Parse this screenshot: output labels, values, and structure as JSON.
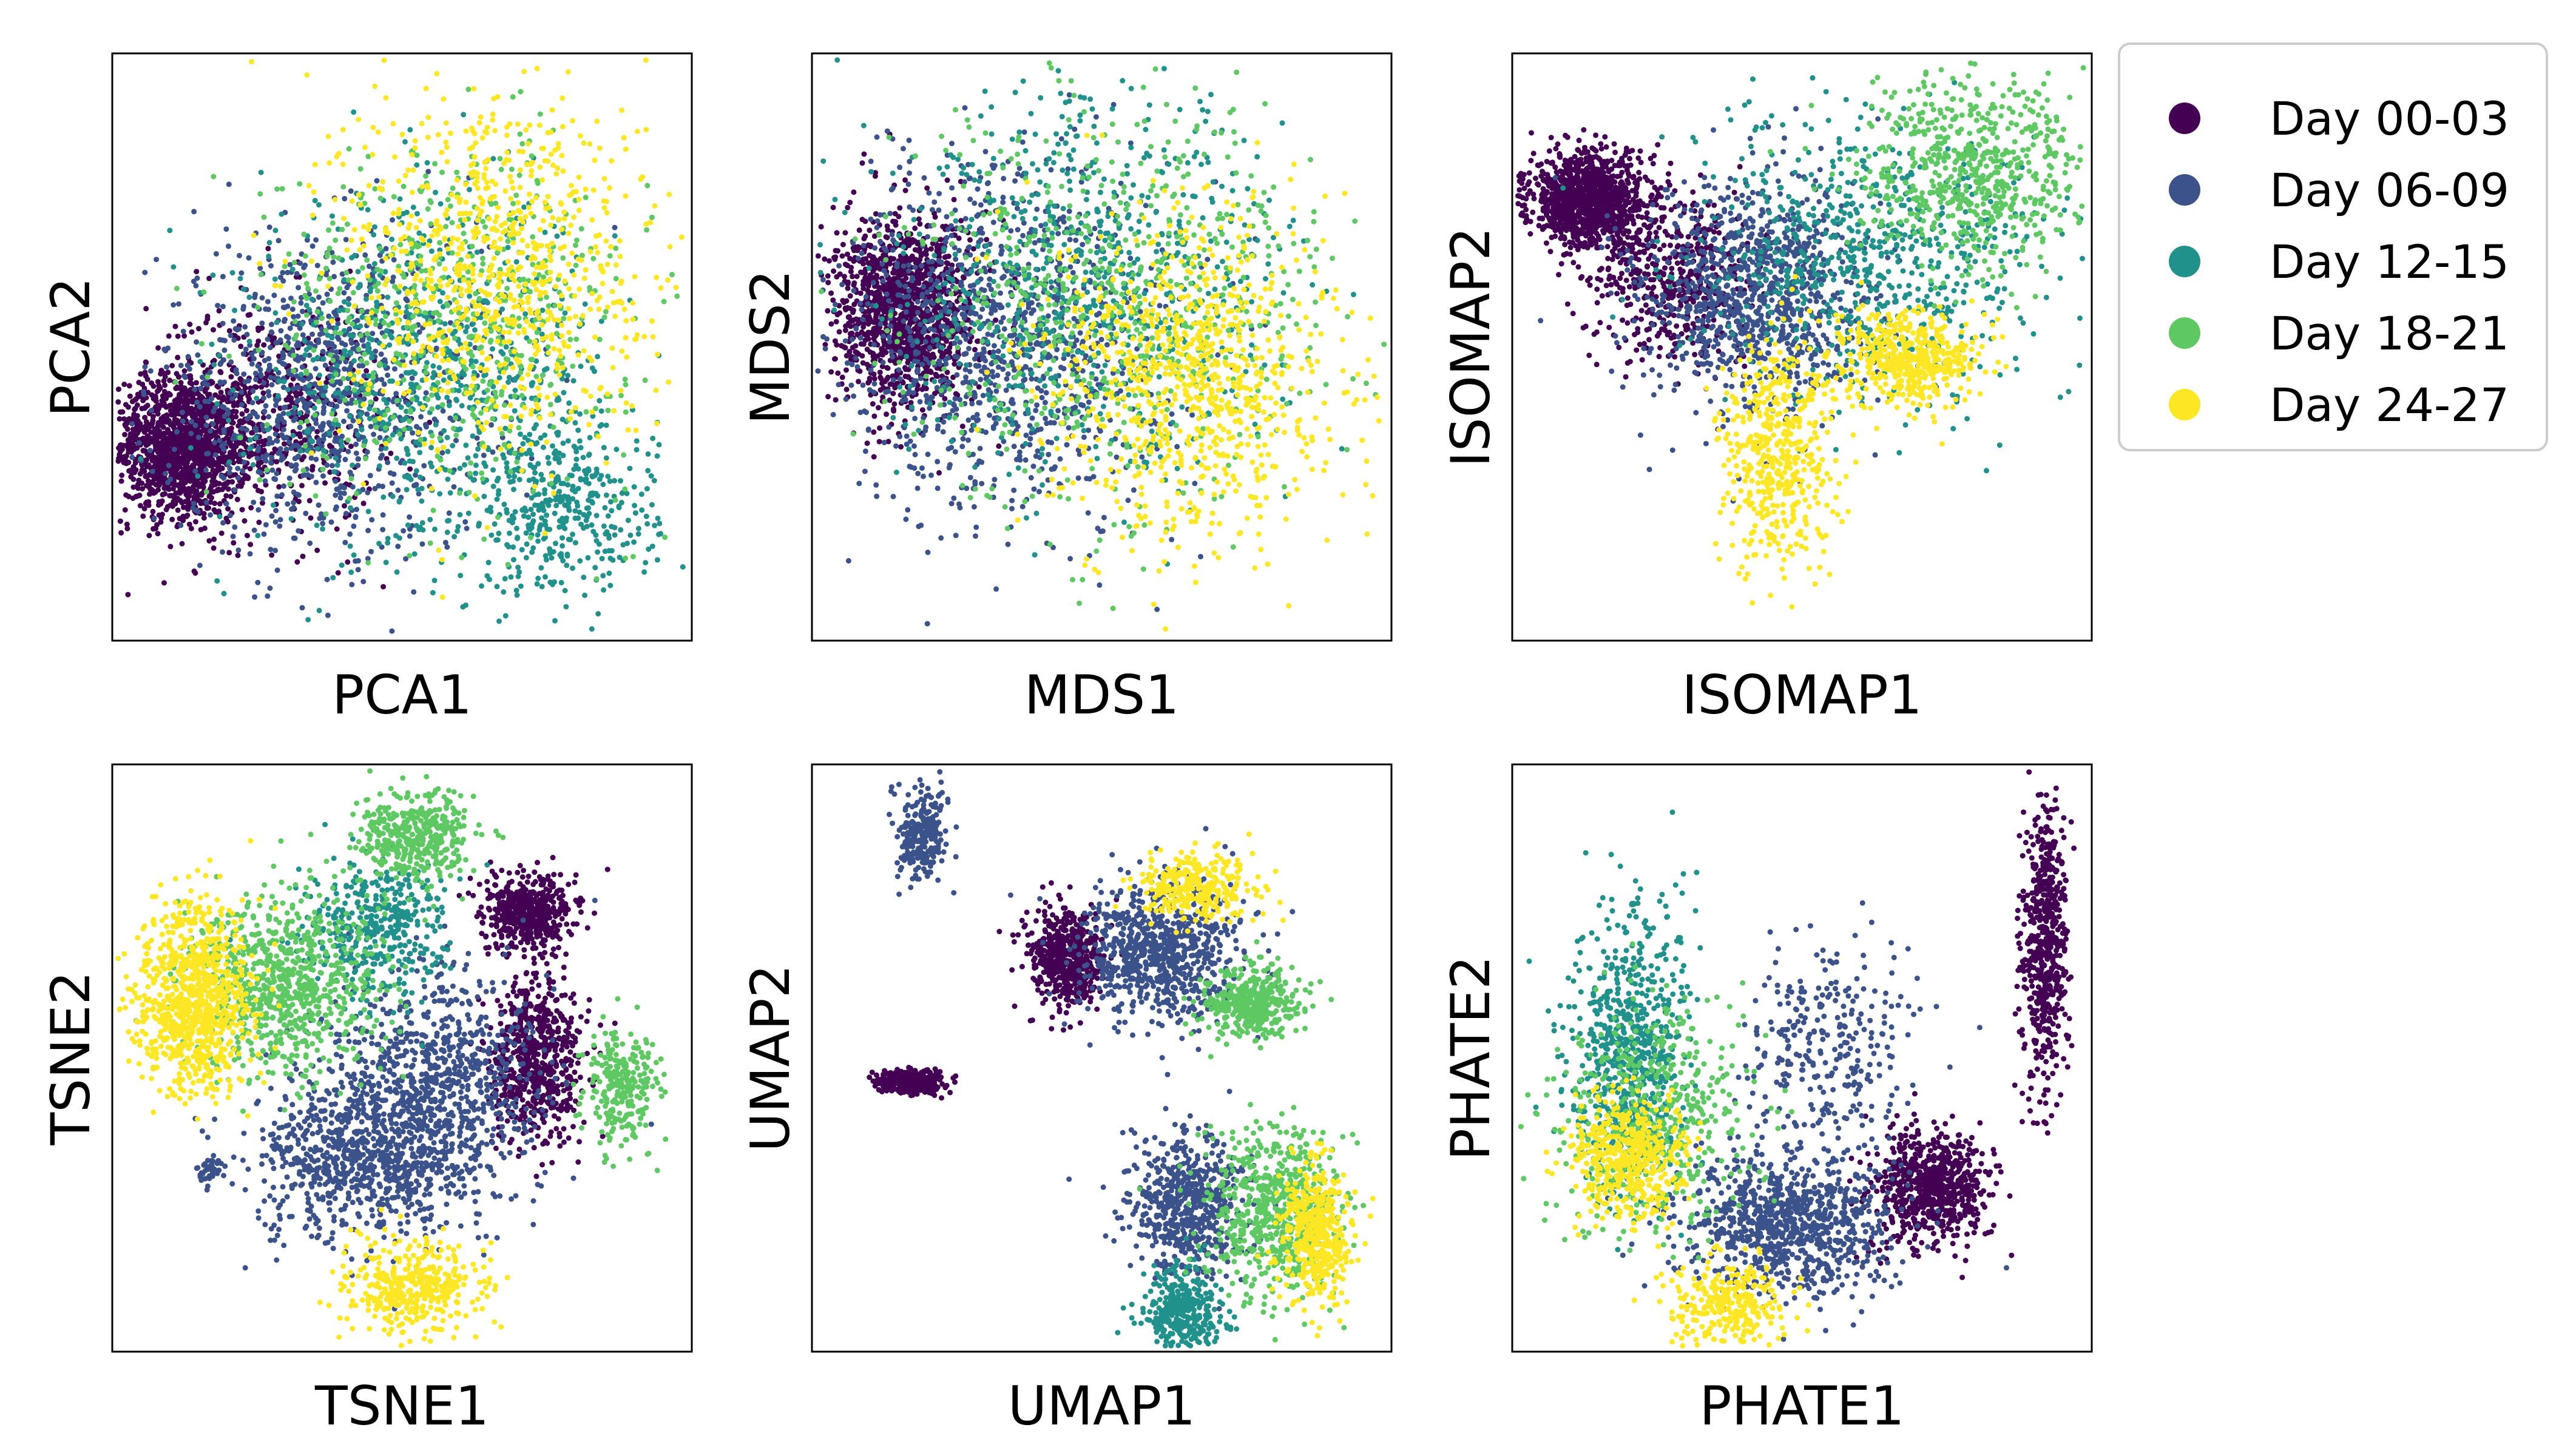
{
  "legend": {
    "placement": "right",
    "entries": [
      {
        "label": "Day 00-03",
        "color": "#440154"
      },
      {
        "label": "Day 06-09",
        "color": "#3b528b"
      },
      {
        "label": "Day 12-15",
        "color": "#21918c"
      },
      {
        "label": "Day 18-21",
        "color": "#5ec962"
      },
      {
        "label": "Day 24-27",
        "color": "#fde725"
      }
    ]
  },
  "chart_data": [
    {
      "type": "scatter",
      "xlabel": "PCA1",
      "ylabel": "PCA2",
      "ticks": false,
      "grid": false,
      "clusters": [
        {
          "series": "Day 00-03",
          "cx": 0.12,
          "cy": 0.33,
          "sx": 0.06,
          "sy": 0.06,
          "n": 1400
        },
        {
          "series": "Day 00-03",
          "cx": 0.26,
          "cy": 0.38,
          "sx": 0.1,
          "sy": 0.1,
          "n": 500
        },
        {
          "series": "Day 06-09",
          "cx": 0.36,
          "cy": 0.42,
          "sx": 0.14,
          "sy": 0.13,
          "n": 1000
        },
        {
          "series": "Day 12-15",
          "cx": 0.55,
          "cy": 0.45,
          "sx": 0.15,
          "sy": 0.15,
          "n": 750
        },
        {
          "series": "Day 12-15",
          "cx": 0.78,
          "cy": 0.22,
          "sx": 0.08,
          "sy": 0.07,
          "n": 380
        },
        {
          "series": "Day 18-21",
          "cx": 0.58,
          "cy": 0.55,
          "sx": 0.16,
          "sy": 0.15,
          "n": 600
        },
        {
          "series": "Day 24-27",
          "cx": 0.66,
          "cy": 0.64,
          "sx": 0.13,
          "sy": 0.16,
          "n": 850
        }
      ]
    },
    {
      "type": "scatter",
      "xlabel": "MDS1",
      "ylabel": "MDS2",
      "ticks": false,
      "grid": false,
      "clusters": [
        {
          "series": "Day 00-03",
          "cx": 0.16,
          "cy": 0.56,
          "sx": 0.06,
          "sy": 0.08,
          "n": 1300
        },
        {
          "series": "Day 06-09",
          "cx": 0.33,
          "cy": 0.52,
          "sx": 0.14,
          "sy": 0.15,
          "n": 1100
        },
        {
          "series": "Day 12-15",
          "cx": 0.48,
          "cy": 0.6,
          "sx": 0.17,
          "sy": 0.16,
          "n": 700
        },
        {
          "series": "Day 18-21",
          "cx": 0.52,
          "cy": 0.58,
          "sx": 0.18,
          "sy": 0.17,
          "n": 700
        },
        {
          "series": "Day 24-27",
          "cx": 0.66,
          "cy": 0.45,
          "sx": 0.12,
          "sy": 0.14,
          "n": 900
        }
      ]
    },
    {
      "type": "scatter",
      "xlabel": "ISOMAP1",
      "ylabel": "ISOMAP2",
      "ticks": false,
      "grid": false,
      "clusters": [
        {
          "series": "Day 00-03",
          "cx": 0.13,
          "cy": 0.75,
          "sx": 0.05,
          "sy": 0.04,
          "n": 1100
        },
        {
          "series": "Day 00-03",
          "cx": 0.28,
          "cy": 0.62,
          "sx": 0.07,
          "sy": 0.07,
          "n": 500
        },
        {
          "series": "Day 06-09",
          "cx": 0.42,
          "cy": 0.58,
          "sx": 0.1,
          "sy": 0.1,
          "n": 1000
        },
        {
          "series": "Day 12-15",
          "cx": 0.62,
          "cy": 0.65,
          "sx": 0.15,
          "sy": 0.12,
          "n": 700
        },
        {
          "series": "Day 18-21",
          "cx": 0.8,
          "cy": 0.8,
          "sx": 0.1,
          "sy": 0.08,
          "n": 650
        },
        {
          "series": "Day 24-27",
          "cx": 0.68,
          "cy": 0.48,
          "sx": 0.06,
          "sy": 0.04,
          "n": 500
        },
        {
          "series": "Day 24-27",
          "cx": 0.46,
          "cy": 0.32,
          "sx": 0.05,
          "sy": 0.1,
          "n": 500
        }
      ]
    },
    {
      "type": "scatter",
      "xlabel": "TSNE1",
      "ylabel": "TSNE2",
      "ticks": false,
      "grid": false,
      "clusters": [
        {
          "series": "Day 24-27",
          "cx": 0.14,
          "cy": 0.6,
          "sx": 0.05,
          "sy": 0.08,
          "n": 900
        },
        {
          "series": "Day 18-21",
          "cx": 0.3,
          "cy": 0.62,
          "sx": 0.08,
          "sy": 0.08,
          "n": 800
        },
        {
          "series": "Day 12-15",
          "cx": 0.45,
          "cy": 0.72,
          "sx": 0.06,
          "sy": 0.06,
          "n": 400
        },
        {
          "series": "Day 00-03",
          "cx": 0.72,
          "cy": 0.75,
          "sx": 0.04,
          "sy": 0.03,
          "n": 500
        },
        {
          "series": "Day 00-03",
          "cx": 0.73,
          "cy": 0.5,
          "sx": 0.04,
          "sy": 0.07,
          "n": 650
        },
        {
          "series": "Day 06-09",
          "cx": 0.55,
          "cy": 0.45,
          "sx": 0.09,
          "sy": 0.1,
          "n": 900
        },
        {
          "series": "Day 06-09",
          "cx": 0.42,
          "cy": 0.32,
          "sx": 0.09,
          "sy": 0.07,
          "n": 700
        },
        {
          "series": "Day 18-21",
          "cx": 0.52,
          "cy": 0.88,
          "sx": 0.05,
          "sy": 0.04,
          "n": 400
        },
        {
          "series": "Day 24-27",
          "cx": 0.52,
          "cy": 0.11,
          "sx": 0.06,
          "sy": 0.04,
          "n": 400
        },
        {
          "series": "Day 18-21",
          "cx": 0.88,
          "cy": 0.45,
          "sx": 0.03,
          "sy": 0.05,
          "n": 250
        },
        {
          "series": "Day 06-09",
          "cx": 0.17,
          "cy": 0.31,
          "sx": 0.01,
          "sy": 0.01,
          "n": 40
        }
      ]
    },
    {
      "type": "scatter",
      "xlabel": "UMAP1",
      "ylabel": "UMAP2",
      "ticks": false,
      "grid": false,
      "clusters": [
        {
          "series": "Day 06-09",
          "cx": 0.19,
          "cy": 0.88,
          "sx": 0.02,
          "sy": 0.04,
          "n": 250
        },
        {
          "series": "Day 00-03",
          "cx": 0.44,
          "cy": 0.67,
          "sx": 0.03,
          "sy": 0.04,
          "n": 550
        },
        {
          "series": "Day 06-09",
          "cx": 0.6,
          "cy": 0.68,
          "sx": 0.07,
          "sy": 0.06,
          "n": 800
        },
        {
          "series": "Day 24-27",
          "cx": 0.67,
          "cy": 0.79,
          "sx": 0.05,
          "sy": 0.03,
          "n": 300
        },
        {
          "series": "Day 18-21",
          "cx": 0.76,
          "cy": 0.59,
          "sx": 0.04,
          "sy": 0.03,
          "n": 400
        },
        {
          "series": "Day 00-03",
          "cx": 0.17,
          "cy": 0.46,
          "sx": 0.03,
          "sy": 0.01,
          "n": 300
        },
        {
          "series": "Day 06-09",
          "cx": 0.65,
          "cy": 0.25,
          "sx": 0.05,
          "sy": 0.06,
          "n": 600
        },
        {
          "series": "Day 18-21",
          "cx": 0.8,
          "cy": 0.23,
          "sx": 0.06,
          "sy": 0.07,
          "n": 600
        },
        {
          "series": "Day 24-27",
          "cx": 0.87,
          "cy": 0.2,
          "sx": 0.03,
          "sy": 0.06,
          "n": 450
        },
        {
          "series": "Day 12-15",
          "cx": 0.64,
          "cy": 0.07,
          "sx": 0.03,
          "sy": 0.04,
          "n": 350
        }
      ]
    },
    {
      "type": "scatter",
      "xlabel": "PHATE1",
      "ylabel": "PHATE2",
      "ticks": false,
      "grid": false,
      "clusters": [
        {
          "series": "Day 00-03",
          "cx": 0.92,
          "cy": 0.7,
          "sx": 0.02,
          "sy": 0.12,
          "n": 600
        },
        {
          "series": "Day 00-03",
          "cx": 0.72,
          "cy": 0.28,
          "sx": 0.05,
          "sy": 0.05,
          "n": 700
        },
        {
          "series": "Day 06-09",
          "cx": 0.48,
          "cy": 0.22,
          "sx": 0.09,
          "sy": 0.06,
          "n": 900
        },
        {
          "series": "Day 06-09",
          "cx": 0.55,
          "cy": 0.52,
          "sx": 0.08,
          "sy": 0.09,
          "n": 300
        },
        {
          "series": "Day 12-15",
          "cx": 0.2,
          "cy": 0.5,
          "sx": 0.05,
          "sy": 0.12,
          "n": 700
        },
        {
          "series": "Day 18-21",
          "cx": 0.25,
          "cy": 0.4,
          "sx": 0.08,
          "sy": 0.1,
          "n": 500
        },
        {
          "series": "Day 24-27",
          "cx": 0.2,
          "cy": 0.33,
          "sx": 0.05,
          "sy": 0.05,
          "n": 500
        },
        {
          "series": "Day 24-27",
          "cx": 0.37,
          "cy": 0.08,
          "sx": 0.05,
          "sy": 0.04,
          "n": 300
        }
      ]
    }
  ]
}
